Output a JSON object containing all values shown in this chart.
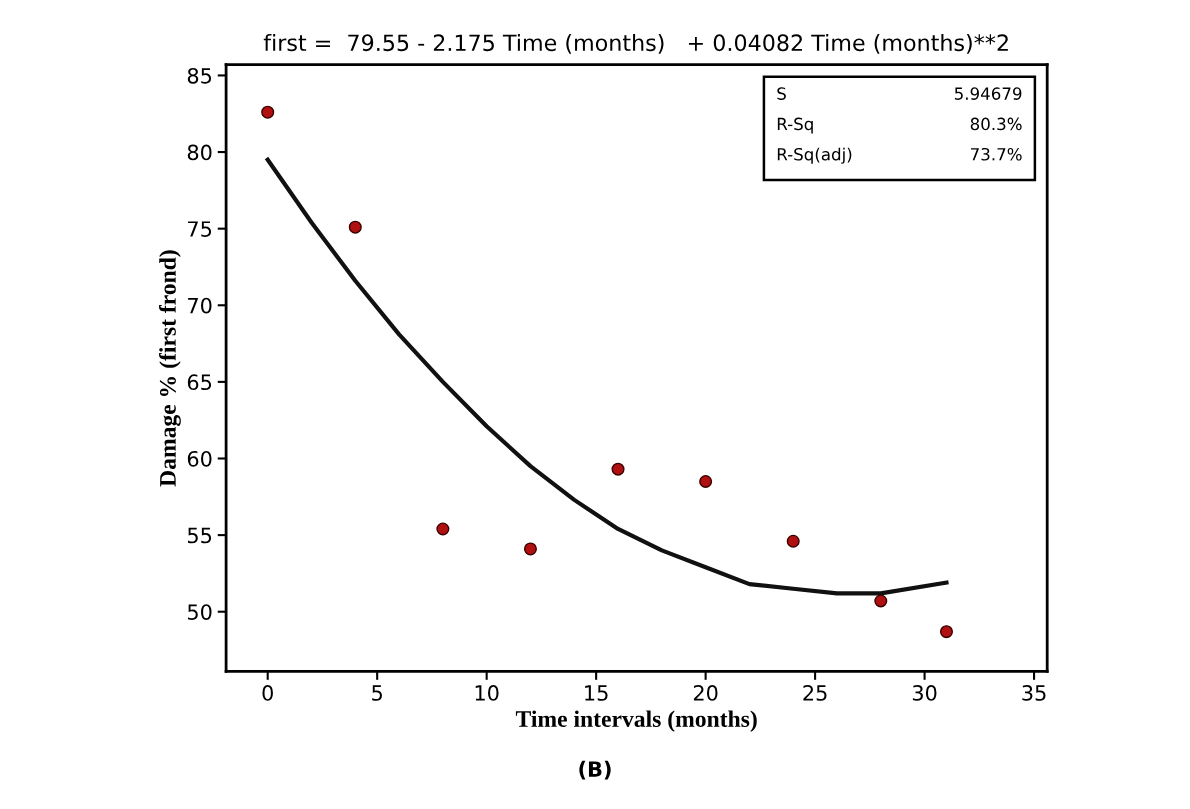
{
  "chart_data": {
    "type": "scatter",
    "title": "first =  79.55 - 2.175 Time (months)   + 0.04082 Time (months)**2",
    "xlabel": "Time intervals (months)",
    "ylabel": "Damage % (first frond)",
    "series": [
      {
        "color": "#b01010",
        "marker": "circle",
        "x": [
          0,
          4,
          8,
          12,
          16,
          20,
          24,
          28,
          31
        ],
        "values": [
          82.6,
          75.1,
          55.4,
          54.1,
          59.3,
          58.5,
          54.6,
          50.7,
          48.7
        ]
      },
      {
        "type": "line",
        "color": "#111111",
        "marker": "none",
        "line_style": "solid",
        "x": [
          0,
          2,
          4,
          6,
          8,
          10,
          12,
          14,
          16,
          18,
          20,
          22,
          24,
          26,
          28,
          31
        ],
        "values": [
          79.5,
          75.4,
          71.6,
          68.1,
          65.0,
          62.1,
          59.5,
          57.3,
          55.4,
          54.0,
          52.9,
          51.8,
          51.5,
          51.2,
          51.2,
          51.9
        ]
      }
    ],
    "xlim": [
      -1.9,
      35.6
    ],
    "ylim": [
      46.1,
      85.7
    ],
    "xticks": [
      0,
      5,
      10,
      15,
      20,
      25,
      30,
      35
    ],
    "yticks": [
      50,
      55,
      60,
      65,
      70,
      75,
      80,
      85
    ],
    "grid": false,
    "legend": false,
    "annotations": [
      "S\tR-Sq\tR-Sq(adj)",
      "5.94679\t80.3%\t73.7%",
      "(B)"
    ]
  }
}
